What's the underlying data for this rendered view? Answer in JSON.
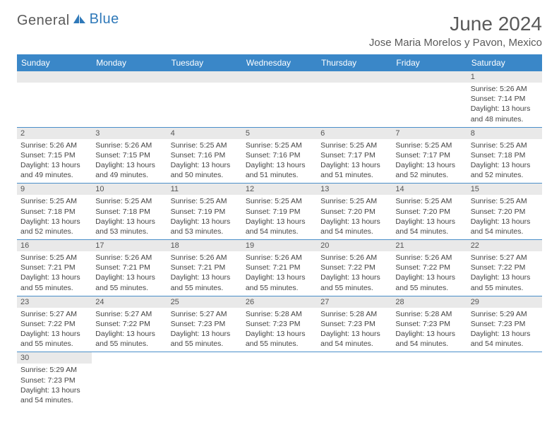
{
  "logo": {
    "general": "General",
    "blue": "Blue"
  },
  "title": "June 2024",
  "location": "Jose Maria Morelos y Pavon, Mexico",
  "day_headers": [
    "Sunday",
    "Monday",
    "Tuesday",
    "Wednesday",
    "Thursday",
    "Friday",
    "Saturday"
  ],
  "colors": {
    "header_bg": "#3a87c8",
    "header_fg": "#ffffff",
    "daynum_bg": "#e9e9e9",
    "border": "#4a8fc9",
    "logo_blue": "#2f79b9",
    "text_gray": "#5a5a5a"
  },
  "layout": {
    "first_weekday_index": 6,
    "days_in_month": 30
  },
  "days": {
    "1": {
      "sunrise": "5:26 AM",
      "sunset": "7:14 PM",
      "daylight": "13 hours and 48 minutes."
    },
    "2": {
      "sunrise": "5:26 AM",
      "sunset": "7:15 PM",
      "daylight": "13 hours and 49 minutes."
    },
    "3": {
      "sunrise": "5:26 AM",
      "sunset": "7:15 PM",
      "daylight": "13 hours and 49 minutes."
    },
    "4": {
      "sunrise": "5:25 AM",
      "sunset": "7:16 PM",
      "daylight": "13 hours and 50 minutes."
    },
    "5": {
      "sunrise": "5:25 AM",
      "sunset": "7:16 PM",
      "daylight": "13 hours and 51 minutes."
    },
    "6": {
      "sunrise": "5:25 AM",
      "sunset": "7:17 PM",
      "daylight": "13 hours and 51 minutes."
    },
    "7": {
      "sunrise": "5:25 AM",
      "sunset": "7:17 PM",
      "daylight": "13 hours and 52 minutes."
    },
    "8": {
      "sunrise": "5:25 AM",
      "sunset": "7:18 PM",
      "daylight": "13 hours and 52 minutes."
    },
    "9": {
      "sunrise": "5:25 AM",
      "sunset": "7:18 PM",
      "daylight": "13 hours and 52 minutes."
    },
    "10": {
      "sunrise": "5:25 AM",
      "sunset": "7:18 PM",
      "daylight": "13 hours and 53 minutes."
    },
    "11": {
      "sunrise": "5:25 AM",
      "sunset": "7:19 PM",
      "daylight": "13 hours and 53 minutes."
    },
    "12": {
      "sunrise": "5:25 AM",
      "sunset": "7:19 PM",
      "daylight": "13 hours and 54 minutes."
    },
    "13": {
      "sunrise": "5:25 AM",
      "sunset": "7:20 PM",
      "daylight": "13 hours and 54 minutes."
    },
    "14": {
      "sunrise": "5:25 AM",
      "sunset": "7:20 PM",
      "daylight": "13 hours and 54 minutes."
    },
    "15": {
      "sunrise": "5:25 AM",
      "sunset": "7:20 PM",
      "daylight": "13 hours and 54 minutes."
    },
    "16": {
      "sunrise": "5:25 AM",
      "sunset": "7:21 PM",
      "daylight": "13 hours and 55 minutes."
    },
    "17": {
      "sunrise": "5:26 AM",
      "sunset": "7:21 PM",
      "daylight": "13 hours and 55 minutes."
    },
    "18": {
      "sunrise": "5:26 AM",
      "sunset": "7:21 PM",
      "daylight": "13 hours and 55 minutes."
    },
    "19": {
      "sunrise": "5:26 AM",
      "sunset": "7:21 PM",
      "daylight": "13 hours and 55 minutes."
    },
    "20": {
      "sunrise": "5:26 AM",
      "sunset": "7:22 PM",
      "daylight": "13 hours and 55 minutes."
    },
    "21": {
      "sunrise": "5:26 AM",
      "sunset": "7:22 PM",
      "daylight": "13 hours and 55 minutes."
    },
    "22": {
      "sunrise": "5:27 AM",
      "sunset": "7:22 PM",
      "daylight": "13 hours and 55 minutes."
    },
    "23": {
      "sunrise": "5:27 AM",
      "sunset": "7:22 PM",
      "daylight": "13 hours and 55 minutes."
    },
    "24": {
      "sunrise": "5:27 AM",
      "sunset": "7:22 PM",
      "daylight": "13 hours and 55 minutes."
    },
    "25": {
      "sunrise": "5:27 AM",
      "sunset": "7:23 PM",
      "daylight": "13 hours and 55 minutes."
    },
    "26": {
      "sunrise": "5:28 AM",
      "sunset": "7:23 PM",
      "daylight": "13 hours and 55 minutes."
    },
    "27": {
      "sunrise": "5:28 AM",
      "sunset": "7:23 PM",
      "daylight": "13 hours and 54 minutes."
    },
    "28": {
      "sunrise": "5:28 AM",
      "sunset": "7:23 PM",
      "daylight": "13 hours and 54 minutes."
    },
    "29": {
      "sunrise": "5:29 AM",
      "sunset": "7:23 PM",
      "daylight": "13 hours and 54 minutes."
    },
    "30": {
      "sunrise": "5:29 AM",
      "sunset": "7:23 PM",
      "daylight": "13 hours and 54 minutes."
    }
  },
  "labels": {
    "sunrise": "Sunrise:",
    "sunset": "Sunset:",
    "daylight": "Daylight:"
  }
}
